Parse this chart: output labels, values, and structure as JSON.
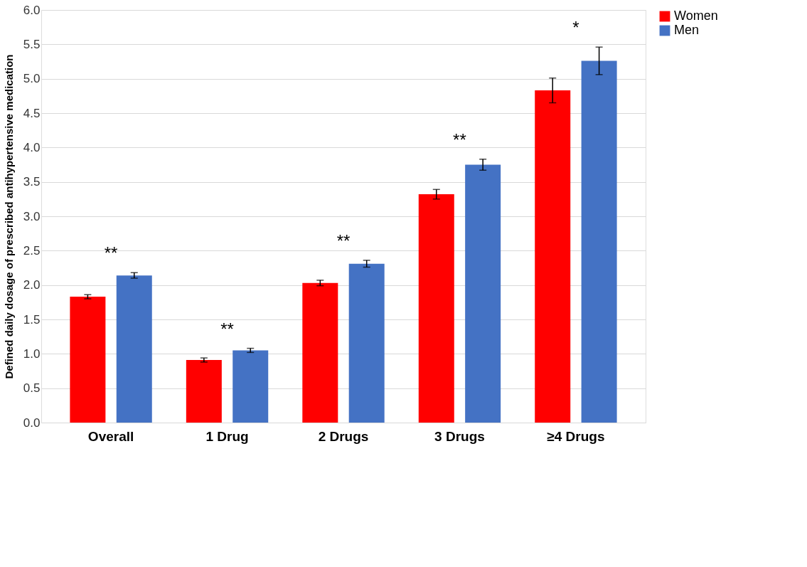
{
  "chart_data": {
    "type": "bar",
    "ylabel": "Defined daily dosage  of prescribed antihypertensive medication",
    "categories": [
      "Overall",
      "1 Drug",
      "2 Drugs",
      "3 Drugs",
      "≥4 Drugs"
    ],
    "series": [
      {
        "name": "Women",
        "color": "#ff0000",
        "values": [
          1.83,
          0.91,
          2.03,
          3.32,
          4.83
        ],
        "errors": [
          0.03,
          0.03,
          0.04,
          0.07,
          0.18
        ]
      },
      {
        "name": "Men",
        "color": "#4472c4",
        "values": [
          2.14,
          1.05,
          2.31,
          3.75,
          5.26
        ],
        "errors": [
          0.04,
          0.03,
          0.05,
          0.08,
          0.2
        ]
      }
    ],
    "ylim": [
      0,
      6
    ],
    "yticks": [
      {
        "value": 0,
        "label": "0.0"
      },
      0.5,
      {
        "value": 1,
        "label": "1.0"
      },
      1.5,
      {
        "value": 2,
        "label": "2.0"
      },
      2.5,
      {
        "value": 3,
        "label": "3.0"
      },
      3.5,
      {
        "value": 4,
        "label": "4.0"
      },
      4.5,
      {
        "value": 5,
        "label": "5.0"
      },
      5.5,
      {
        "value": 6,
        "label": "6.0"
      }
    ],
    "grid": "y",
    "legend": "right",
    "annotations": [
      "**",
      "**",
      "**",
      "**",
      "*"
    ]
  }
}
